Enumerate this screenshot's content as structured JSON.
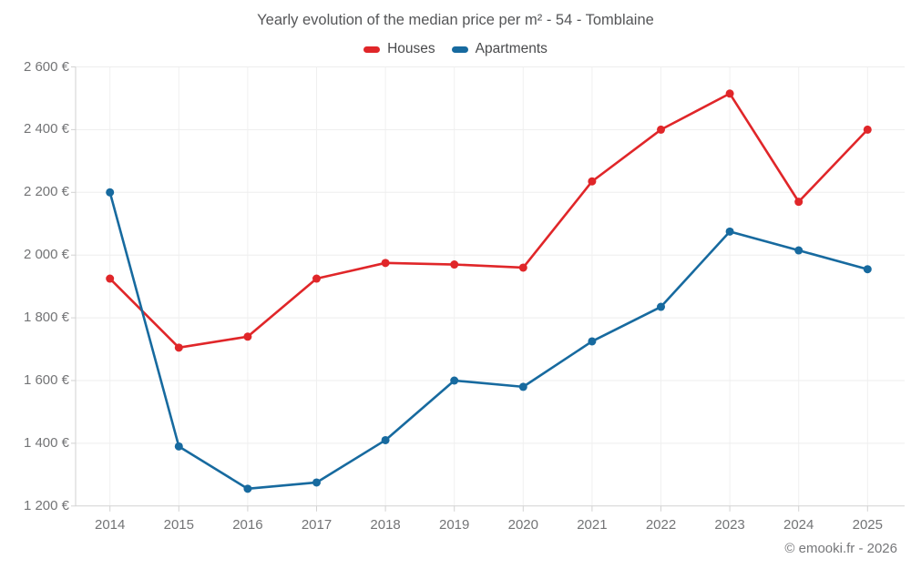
{
  "footer": {
    "credits": "© emooki.fr - 2026"
  },
  "chart_data": {
    "type": "line",
    "title": "Yearly evolution of the median price per m² - 54 - Tomblaine",
    "categories": [
      "2014",
      "2015",
      "2016",
      "2017",
      "2018",
      "2019",
      "2020",
      "2021",
      "2022",
      "2023",
      "2024",
      "2025"
    ],
    "series": [
      {
        "name": "Houses",
        "color": "#e02629",
        "values": [
          1925,
          1705,
          1740,
          1925,
          1975,
          1970,
          1960,
          2235,
          2400,
          2515,
          2170,
          2400
        ]
      },
      {
        "name": "Apartments",
        "color": "#176a9f",
        "values": [
          2200,
          1390,
          1255,
          1275,
          1410,
          1600,
          1580,
          1725,
          1835,
          2075,
          2015,
          1955
        ]
      }
    ],
    "ylim": [
      1200,
      2600
    ],
    "ytick_step": 200,
    "ytick_labels": [
      "1 200 €",
      "1 400 €",
      "1 600 €",
      "1 800 €",
      "2 000 €",
      "2 200 €",
      "2 400 €",
      "2 600 €"
    ],
    "legend_position": "top",
    "grid": true,
    "grid_color": "#ededed",
    "axis_color": "#d2d2d2",
    "label_color": "#737476"
  }
}
